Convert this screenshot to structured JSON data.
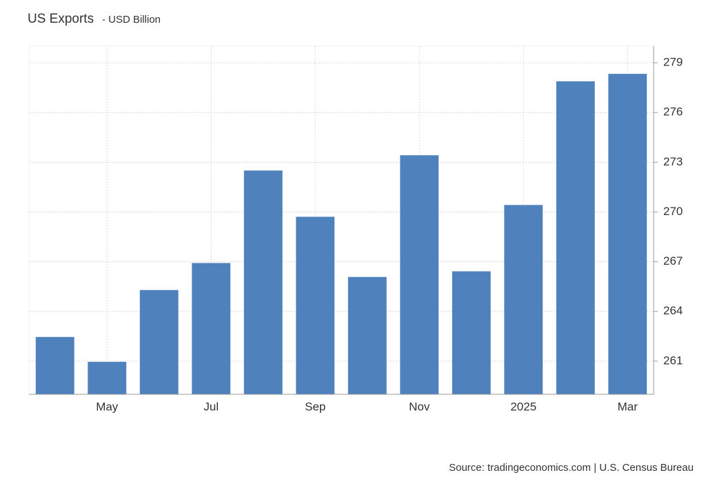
{
  "chart_data": {
    "type": "bar",
    "title": "US Exports",
    "subtitle": "- USD Billion",
    "categories": [
      null,
      "May",
      null,
      "Jul",
      null,
      "Sep",
      null,
      "Nov",
      null,
      "2025",
      null,
      "Mar"
    ],
    "values": [
      262.46,
      260.96,
      265.29,
      266.92,
      272.5,
      269.71,
      266.08,
      273.42,
      266.42,
      270.42,
      277.88,
      278.33
    ],
    "color": "#4f81bd",
    "ylim": [
      259,
      280
    ],
    "yticks": [
      261,
      264,
      267,
      270,
      273,
      276,
      279
    ],
    "grid": true,
    "source": "Source: tradingeconomics.com | U.S. Census Bureau"
  }
}
